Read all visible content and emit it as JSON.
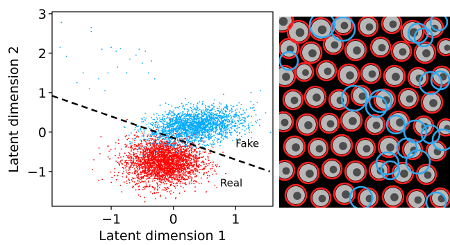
{
  "chart_data": {
    "type": "scatter",
    "xlabel": "Latent dimension 1",
    "ylabel": "Latent dimension 2",
    "xlim": [
      -1.95,
      1.6
    ],
    "ylim": [
      -1.88,
      3.05
    ],
    "xticks": [
      {
        "value": -1,
        "label": "−1"
      },
      {
        "value": 0,
        "label": "0"
      },
      {
        "value": 1,
        "label": "1"
      }
    ],
    "yticks": [
      {
        "value": -1,
        "label": "−1"
      },
      {
        "value": 0,
        "label": "0"
      },
      {
        "value": 1,
        "label": "1"
      },
      {
        "value": 2,
        "label": "2"
      },
      {
        "value": 3,
        "label": "3"
      }
    ],
    "grid": false,
    "series": [
      {
        "name": "Fake",
        "color": "#00aaff",
        "cluster": {
          "center": [
            0.35,
            0.15
          ],
          "std": [
            0.38,
            0.22
          ],
          "approx_count": 2200
        },
        "outliers": [
          [
            -1.8,
            2.78
          ],
          [
            -1.32,
            2.65
          ],
          [
            -1.32,
            2.55
          ],
          [
            -1.82,
            2.15
          ],
          [
            -1.72,
            1.92
          ],
          [
            -1.15,
            2.1
          ],
          [
            -1.0,
            2.15
          ],
          [
            -0.92,
            2.05
          ],
          [
            -0.85,
            2.12
          ],
          [
            -0.55,
            2.1
          ],
          [
            -0.6,
            1.95
          ],
          [
            -0.7,
            1.85
          ],
          [
            -0.5,
            1.75
          ],
          [
            -0.35,
            1.8
          ],
          [
            -0.45,
            2.05
          ],
          [
            -1.45,
            1.5
          ],
          [
            -1.55,
            1.25
          ],
          [
            -1.2,
            1.35
          ],
          [
            -1.05,
            1.5
          ],
          [
            -0.9,
            1.65
          ],
          [
            -0.75,
            1.5
          ],
          [
            -0.4,
            1.5
          ],
          [
            -0.3,
            1.35
          ],
          [
            -1.35,
            1.1
          ],
          [
            -1.1,
            1.05
          ],
          [
            1.3,
            0.55
          ],
          [
            1.35,
            0.75
          ],
          [
            1.25,
            1.0
          ],
          [
            1.4,
            1.05
          ],
          [
            1.15,
            0.3
          ],
          [
            1.35,
            0.3
          ]
        ]
      },
      {
        "name": "Real",
        "color": "#ff0000",
        "cluster": {
          "center": [
            -0.15,
            -0.75
          ],
          "std": [
            0.3,
            0.3
          ],
          "approx_count": 2800
        },
        "outliers": [
          [
            -1.2,
            -1.22
          ],
          [
            -1.3,
            -0.95
          ],
          [
            -1.18,
            -0.55
          ],
          [
            -1.05,
            -0.35
          ],
          [
            0.45,
            -1.3
          ],
          [
            0.55,
            -1.1
          ],
          [
            0.35,
            -1.5
          ],
          [
            -0.3,
            -1.55
          ],
          [
            0.1,
            -1.55
          ],
          [
            -0.85,
            -1.35
          ]
        ]
      }
    ],
    "decision_boundary": {
      "style": "dashed",
      "color": "#000000",
      "points": [
        [
          -1.95,
          0.92
        ],
        [
          1.55,
          -1.0
        ]
      ]
    },
    "annotations": [
      {
        "text": "Fake",
        "x": 1.0,
        "y": -0.38
      },
      {
        "text": "Real",
        "x": 0.75,
        "y": -1.38
      }
    ]
  },
  "micrograph": {
    "background": "#000000",
    "particle_color": "#b8b8b8",
    "true_ring_color": "#ff2020",
    "false_ring_color": "#2ea8ee",
    "red_rings": [
      [
        4,
        6,
        16
      ],
      [
        28,
        22,
        16
      ],
      [
        60,
        18,
        16
      ],
      [
        92,
        12,
        14
      ],
      [
        128,
        14,
        14
      ],
      [
        162,
        10,
        14
      ],
      [
        192,
        22,
        16
      ],
      [
        222,
        16,
        14
      ],
      [
        14,
        46,
        14
      ],
      [
        46,
        52,
        15
      ],
      [
        78,
        40,
        14
      ],
      [
        110,
        48,
        15
      ],
      [
        146,
        44,
        14
      ],
      [
        176,
        50,
        14
      ],
      [
        210,
        52,
        15
      ],
      [
        240,
        44,
        12
      ],
      [
        8,
        86,
        15
      ],
      [
        36,
        80,
        13
      ],
      [
        68,
        78,
        14
      ],
      [
        100,
        84,
        15
      ],
      [
        132,
        82,
        14
      ],
      [
        166,
        86,
        15
      ],
      [
        200,
        88,
        14
      ],
      [
        234,
        86,
        14
      ],
      [
        20,
        120,
        14
      ],
      [
        52,
        116,
        15
      ],
      [
        86,
        120,
        14
      ],
      [
        118,
        114,
        14
      ],
      [
        152,
        120,
        15
      ],
      [
        186,
        118,
        14
      ],
      [
        220,
        124,
        15
      ],
      [
        6,
        152,
        14
      ],
      [
        40,
        156,
        15
      ],
      [
        72,
        154,
        14
      ],
      [
        104,
        150,
        15
      ],
      [
        138,
        156,
        14
      ],
      [
        172,
        152,
        15
      ],
      [
        208,
        158,
        14
      ],
      [
        240,
        160,
        12
      ],
      [
        22,
        188,
        15
      ],
      [
        56,
        190,
        14
      ],
      [
        90,
        186,
        15
      ],
      [
        124,
        190,
        14
      ],
      [
        158,
        188,
        15
      ],
      [
        192,
        192,
        14
      ],
      [
        226,
        194,
        14
      ],
      [
        8,
        222,
        14
      ],
      [
        42,
        226,
        15
      ],
      [
        76,
        220,
        14
      ],
      [
        110,
        224,
        15
      ],
      [
        144,
        222,
        14
      ],
      [
        178,
        226,
        15
      ],
      [
        212,
        228,
        14
      ],
      [
        24,
        258,
        15
      ],
      [
        60,
        262,
        14
      ],
      [
        94,
        256,
        15
      ],
      [
        128,
        262,
        14
      ],
      [
        164,
        260,
        15
      ],
      [
        198,
        264,
        14
      ],
      [
        232,
        262,
        14
      ]
    ],
    "blue_rings": [
      [
        62,
        12,
        18
      ],
      [
        92,
        18,
        17
      ],
      [
        200,
        24,
        14
      ],
      [
        208,
        30,
        13
      ],
      [
        230,
        8,
        12
      ],
      [
        14,
        64,
        13
      ],
      [
        108,
        118,
        18
      ],
      [
        146,
        122,
        16
      ],
      [
        140,
        130,
        15
      ],
      [
        218,
        96,
        16
      ],
      [
        232,
        92,
        13
      ],
      [
        168,
        156,
        13
      ],
      [
        196,
        166,
        16
      ],
      [
        218,
        170,
        13
      ],
      [
        236,
        178,
        15
      ],
      [
        184,
        190,
        14
      ],
      [
        200,
        210,
        17
      ],
      [
        156,
        212,
        16
      ],
      [
        160,
        222,
        13
      ],
      [
        118,
        262,
        16
      ],
      [
        226,
        268,
        14
      ]
    ]
  }
}
